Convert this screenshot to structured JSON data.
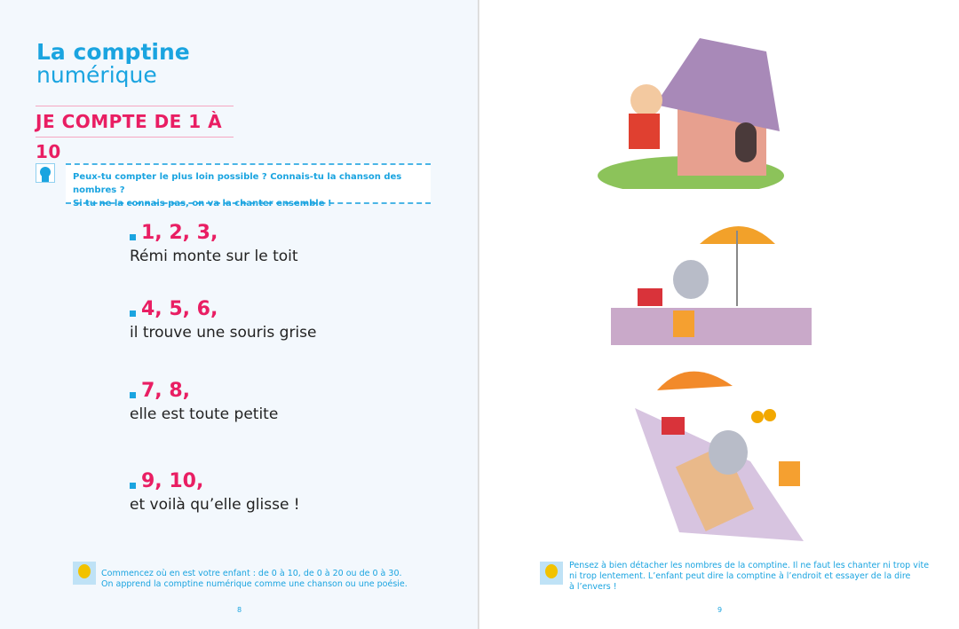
{
  "left_page": {
    "title_line1": "La comptine",
    "title_line2": "numérique",
    "subtitle": "JE COMPTE DE 1 À 10",
    "question": "Peux-tu compter le plus loin possible ? Connais-tu la chanson des nombres ?",
    "question2": "Si tu ne la connais pas, on va la chanter ensemble !",
    "verses": [
      {
        "numbers": "1, 2, 3,",
        "text": "Rémi monte sur le toit"
      },
      {
        "numbers": "4, 5, 6,",
        "text": "il trouve une souris grise"
      },
      {
        "numbers": "7, 8,",
        "text": "elle est toute petite"
      },
      {
        "numbers": "9, 10,",
        "text": "et voilà qu’elle glisse !"
      }
    ],
    "tip_line1": "Commencez où en est votre enfant : de 0 à 10, de 0 à 20 ou de 0 à 30.",
    "tip_line2": "On apprend la comptine numérique comme une chanson ou une poésie.",
    "page_number": "8"
  },
  "right_page": {
    "tip_line1": "Pensez à bien détacher les nombres de la comptine. Il ne faut les chanter ni trop vite",
    "tip_line2": "ni trop lentement. L’enfant peut dire la comptine à l’endroit et essayer de la dire",
    "tip_line3": "à l’envers !",
    "page_number": "9"
  },
  "colors": {
    "accent_blue": "#1aa4e0",
    "accent_pink": "#e91e63"
  }
}
